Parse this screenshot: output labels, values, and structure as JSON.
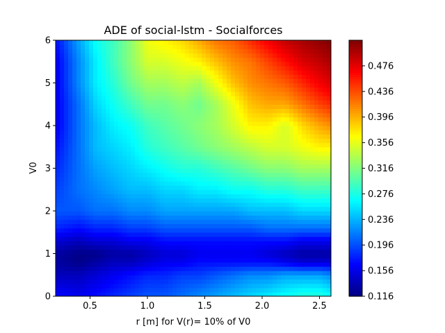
{
  "chart_data": {
    "type": "heatmap",
    "title": "ADE of social-lstm - Socialforces",
    "xlabel": "r [m] for V(r)= 10% of V0",
    "ylabel": "V0",
    "xlim": [
      0.2,
      2.6
    ],
    "ylim": [
      0,
      6
    ],
    "xticks": [
      0.5,
      1.0,
      1.5,
      2.0,
      2.5
    ],
    "xtick_labels": [
      "0.5",
      "1.0",
      "1.5",
      "2.0",
      "2.5"
    ],
    "yticks": [
      0,
      1,
      2,
      3,
      4,
      5,
      6
    ],
    "ytick_labels": [
      "0",
      "1",
      "2",
      "3",
      "4",
      "5",
      "6"
    ],
    "colormap": "jet",
    "colorbar": {
      "min": 0.116,
      "max": 0.516,
      "ticks": [
        0.116,
        0.156,
        0.196,
        0.236,
        0.276,
        0.316,
        0.356,
        0.396,
        0.436,
        0.476
      ],
      "tick_labels": [
        "0.116",
        "0.156",
        "0.196",
        "0.236",
        "0.276",
        "0.316",
        "0.356",
        "0.396",
        "0.436",
        "0.476"
      ]
    },
    "grid_x": [
      0.2,
      0.4,
      0.55,
      0.7,
      0.85,
      1.0,
      1.15,
      1.3,
      1.45,
      1.6,
      1.75,
      1.9,
      2.05,
      2.2,
      2.35,
      2.5,
      2.6
    ],
    "grid_y": [
      0,
      0.5,
      0.8,
      1.0,
      1.3,
      1.6,
      2.0,
      2.5,
      3.0,
      3.5,
      4.0,
      4.5,
      5.0,
      5.5,
      6.0
    ],
    "values": [
      [
        0.17,
        0.16,
        0.17,
        0.18,
        0.19,
        0.2,
        0.2,
        0.21,
        0.22,
        0.23,
        0.24,
        0.25,
        0.26,
        0.27,
        0.28,
        0.28,
        0.27
      ],
      [
        0.14,
        0.14,
        0.15,
        0.16,
        0.17,
        0.18,
        0.18,
        0.19,
        0.19,
        0.2,
        0.21,
        0.22,
        0.22,
        0.23,
        0.23,
        0.23,
        0.22
      ],
      [
        0.13,
        0.12,
        0.13,
        0.14,
        0.14,
        0.15,
        0.16,
        0.16,
        0.17,
        0.17,
        0.17,
        0.17,
        0.17,
        0.16,
        0.15,
        0.15,
        0.15
      ],
      [
        0.13,
        0.12,
        0.12,
        0.13,
        0.13,
        0.14,
        0.15,
        0.15,
        0.16,
        0.16,
        0.16,
        0.16,
        0.15,
        0.14,
        0.13,
        0.13,
        0.13
      ],
      [
        0.15,
        0.14,
        0.15,
        0.15,
        0.16,
        0.16,
        0.17,
        0.17,
        0.17,
        0.17,
        0.17,
        0.17,
        0.17,
        0.17,
        0.16,
        0.16,
        0.16
      ],
      [
        0.18,
        0.17,
        0.18,
        0.18,
        0.19,
        0.19,
        0.2,
        0.2,
        0.2,
        0.2,
        0.2,
        0.2,
        0.21,
        0.21,
        0.21,
        0.21,
        0.21
      ],
      [
        0.2,
        0.2,
        0.21,
        0.21,
        0.22,
        0.22,
        0.23,
        0.23,
        0.23,
        0.23,
        0.23,
        0.24,
        0.24,
        0.24,
        0.25,
        0.25,
        0.25
      ],
      [
        0.19,
        0.21,
        0.22,
        0.23,
        0.24,
        0.24,
        0.25,
        0.25,
        0.26,
        0.26,
        0.27,
        0.27,
        0.28,
        0.28,
        0.29,
        0.29,
        0.29
      ],
      [
        0.18,
        0.21,
        0.23,
        0.24,
        0.25,
        0.26,
        0.27,
        0.28,
        0.28,
        0.29,
        0.3,
        0.31,
        0.32,
        0.32,
        0.33,
        0.33,
        0.33
      ],
      [
        0.17,
        0.21,
        0.24,
        0.25,
        0.26,
        0.28,
        0.29,
        0.3,
        0.31,
        0.32,
        0.33,
        0.34,
        0.35,
        0.35,
        0.36,
        0.37,
        0.37
      ],
      [
        0.16,
        0.21,
        0.24,
        0.26,
        0.27,
        0.29,
        0.3,
        0.31,
        0.32,
        0.33,
        0.35,
        0.37,
        0.37,
        0.35,
        0.38,
        0.4,
        0.41
      ],
      [
        0.16,
        0.21,
        0.25,
        0.27,
        0.29,
        0.31,
        0.31,
        0.32,
        0.31,
        0.33,
        0.36,
        0.39,
        0.4,
        0.4,
        0.42,
        0.44,
        0.45
      ],
      [
        0.16,
        0.22,
        0.26,
        0.28,
        0.31,
        0.33,
        0.33,
        0.34,
        0.33,
        0.36,
        0.39,
        0.41,
        0.42,
        0.43,
        0.45,
        0.47,
        0.48
      ],
      [
        0.16,
        0.22,
        0.26,
        0.29,
        0.32,
        0.35,
        0.35,
        0.36,
        0.37,
        0.39,
        0.41,
        0.42,
        0.44,
        0.46,
        0.48,
        0.49,
        0.5
      ],
      [
        0.17,
        0.23,
        0.27,
        0.29,
        0.32,
        0.36,
        0.37,
        0.38,
        0.4,
        0.42,
        0.43,
        0.45,
        0.47,
        0.49,
        0.5,
        0.51,
        0.516
      ]
    ]
  }
}
